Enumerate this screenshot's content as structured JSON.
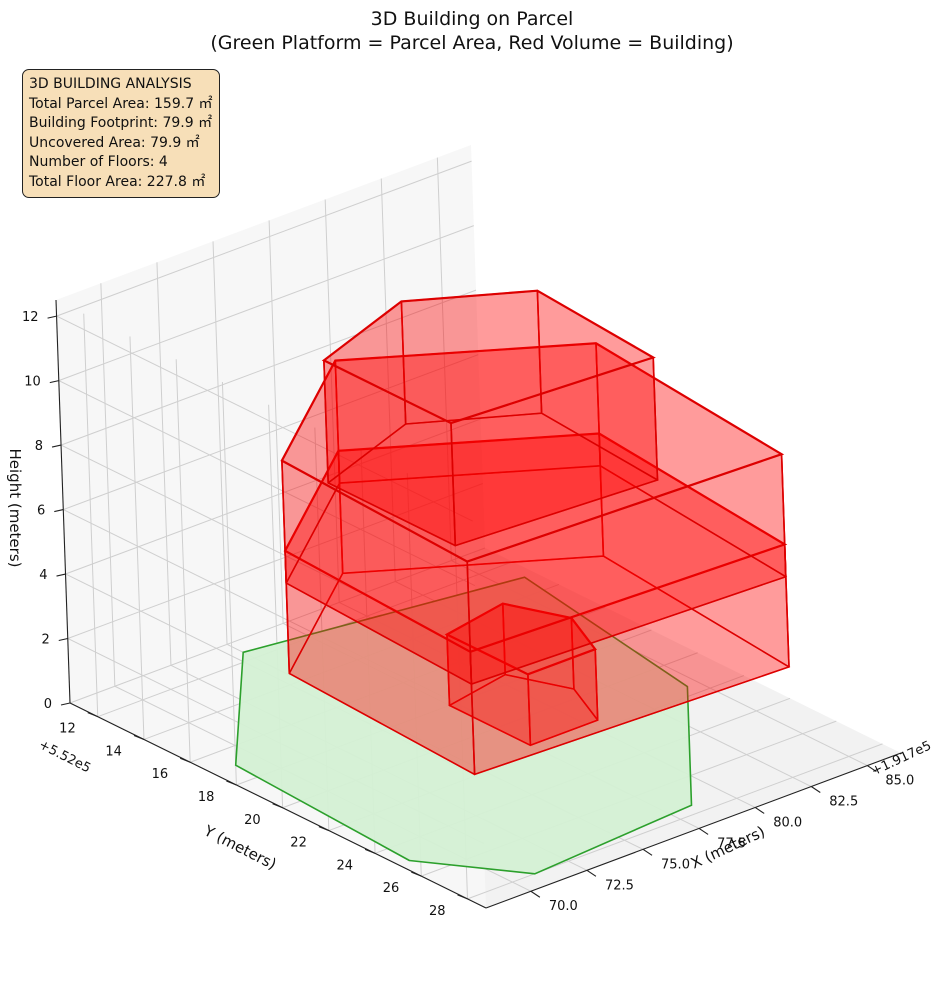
{
  "chart_data": {
    "type": "3d-polygons",
    "title": [
      "3D Building on Parcel",
      "(Green Platform = Parcel Area, Red Volume = Building)"
    ],
    "xlabel": "X (meters)",
    "ylabel": "Y (meters)",
    "zlabel": "Height (meters)",
    "x_offset_label": "+1.917e5",
    "y_offset_label": "+5.52e5",
    "x_ticks": [
      "70.0",
      "72.5",
      "75.0",
      "77.5",
      "80.0",
      "82.5",
      "85.0"
    ],
    "y_ticks": [
      "12",
      "14",
      "16",
      "18",
      "20",
      "22",
      "24",
      "26",
      "28"
    ],
    "z_ticks": [
      "0",
      "2",
      "4",
      "6",
      "8",
      "10",
      "12"
    ],
    "xlim": [
      68.0,
      86.5
    ],
    "ylim": [
      10.8,
      28.8
    ],
    "zlim": [
      0,
      12.5
    ],
    "grid": true,
    "colors": {
      "parcel_fill": "#d4f0d4",
      "parcel_edge": "#2ca02c",
      "building_fill": "#ff0000",
      "building_edge": "#dd0000"
    },
    "parcel": {
      "polygon": [
        [
          68.5,
          25
        ],
        [
          69,
          17
        ],
        [
          75,
          11.5
        ],
        [
          86,
          13
        ],
        [
          84.5,
          21.5
        ],
        [
          78.5,
          27.5
        ],
        [
          71,
          28
        ]
      ],
      "z": 0
    },
    "floors": [
      {
        "z0": 0,
        "z1": 2.2,
        "polygon": [
          [
            77.5,
            18
          ],
          [
            77.5,
            21.5
          ],
          [
            80.5,
            21.5
          ],
          [
            81.5,
            19.5
          ],
          [
            80.5,
            17.5
          ]
        ]
      },
      {
        "z0": 2.2,
        "z1": 6.0,
        "polygon": [
          [
            71.5,
            17
          ],
          [
            71,
            25.5
          ],
          [
            84.5,
            26
          ],
          [
            85.5,
            17
          ],
          [
            78,
            13
          ]
        ]
      },
      {
        "z0": 5.0,
        "z1": 8.8,
        "polygon": [
          [
            71.5,
            17
          ],
          [
            71,
            25.5
          ],
          [
            84.5,
            26
          ],
          [
            85.5,
            17
          ],
          [
            78,
            13
          ]
        ]
      },
      {
        "z0": 8.2,
        "z1": 12.0,
        "polygon": [
          [
            72.5,
            18
          ],
          [
            72.5,
            23.5
          ],
          [
            81,
            24
          ],
          [
            81.5,
            18.5
          ],
          [
            77.5,
            16.5
          ]
        ]
      }
    ]
  },
  "info": {
    "heading": "3D BUILDING ANALYSIS",
    "lines": [
      "Total Parcel Area: 159.7 ㎡",
      "Building Footprint: 79.9 ㎡",
      "Uncovered Area: 79.9 ㎡",
      "Number of Floors: 4",
      "Total Floor Area: 227.8 ㎡"
    ]
  }
}
